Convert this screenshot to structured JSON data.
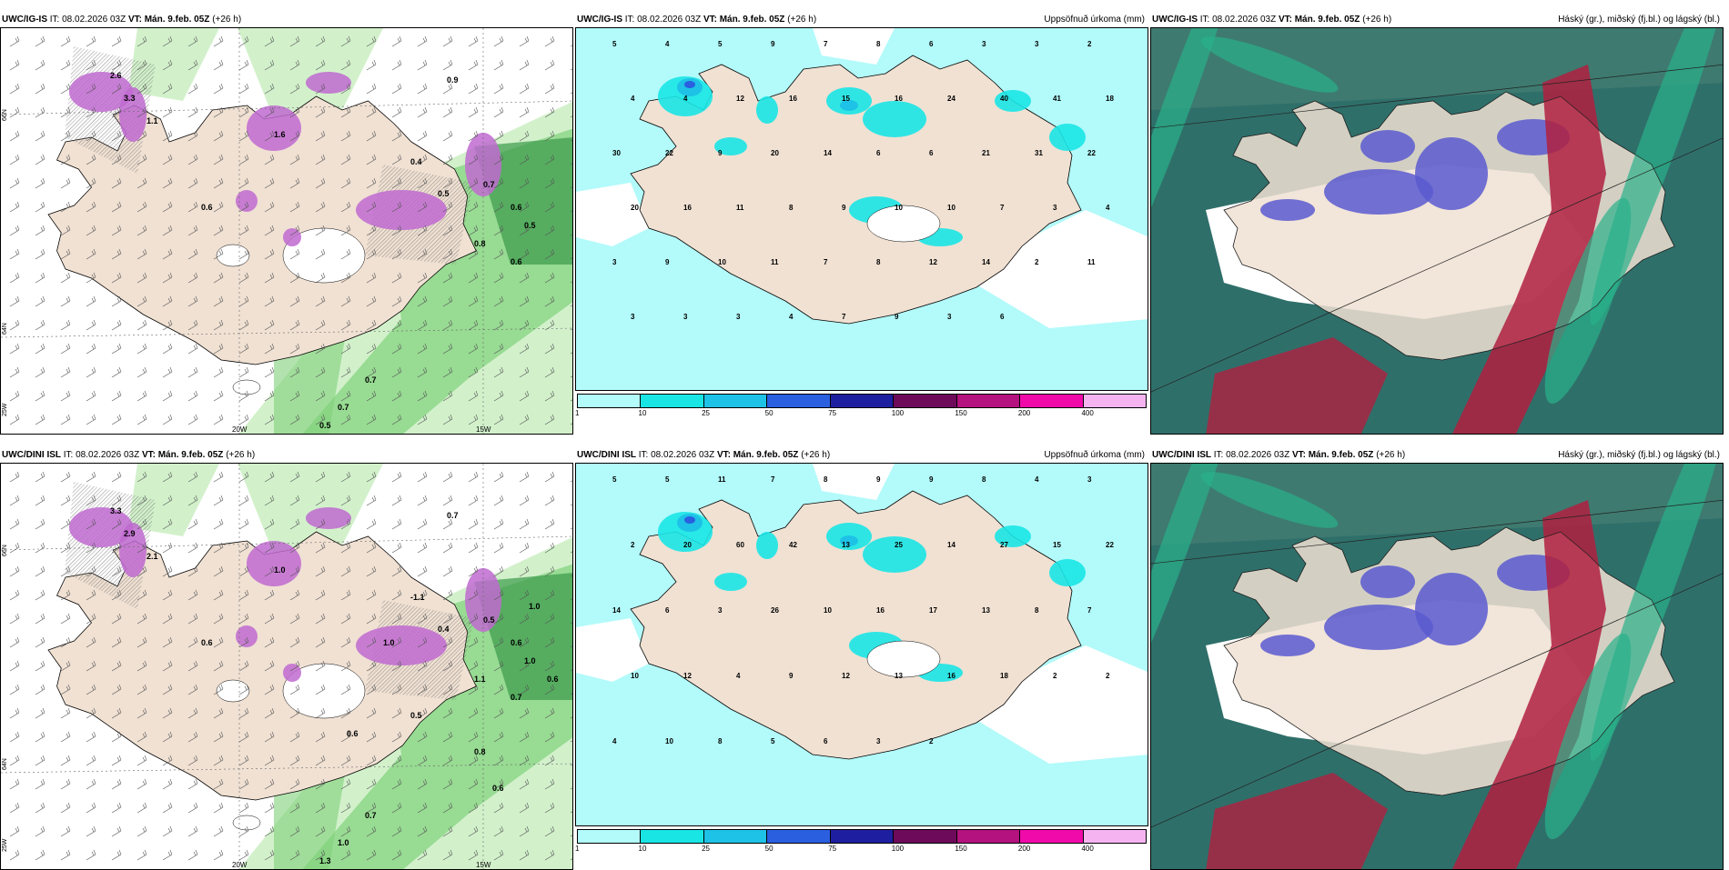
{
  "panels": [
    {
      "id": "r1c1",
      "title_model": "UWC/IG-IS",
      "title_it": " IT: 08.02.2026 03Z ",
      "title_vt": "VT: Mán. 9.feb. 05Z",
      "title_lead": " (+26 h)",
      "title_right": "",
      "type": "wind",
      "lon_labels": [
        "20W",
        "15W"
      ],
      "lat_labels": [
        "66N",
        "64N",
        "25W"
      ],
      "values": [
        "2.6",
        "3.3",
        "1.1",
        "0.6",
        "1.6",
        "0.9",
        "0.4",
        "0.5",
        "0.7",
        "0.6",
        "0.8",
        "0.5",
        "0.6",
        "0.7",
        "0.7",
        "0.5"
      ]
    },
    {
      "id": "r1c2",
      "title_model": "UWC/IG-IS",
      "title_it": " IT: 08.02.2026 03Z ",
      "title_vt": "VT: Mán. 9.feb. 05Z",
      "title_lead": " (+26 h)",
      "title_right": "Uppsöfnuð úrkoma (mm)",
      "type": "precip",
      "values": [
        "5",
        "4",
        "5",
        "9",
        "7",
        "8",
        "6",
        "3",
        "3",
        "2",
        "4",
        "4",
        "12",
        "16",
        "15",
        "16",
        "24",
        "40",
        "41",
        "18",
        "30",
        "22",
        "9",
        "20",
        "14",
        "6",
        "6",
        "21",
        "31",
        "22",
        "20",
        "16",
        "11",
        "8",
        "9",
        "10",
        "10",
        "7",
        "3",
        "4",
        "3",
        "9",
        "10",
        "11",
        "7",
        "8",
        "12",
        "14",
        "2",
        "11",
        "3",
        "3",
        "3",
        "4",
        "7",
        "9",
        "3",
        "6"
      ],
      "colorbar_labels": [
        "1",
        "10",
        "25",
        "50",
        "75",
        "100",
        "150",
        "200",
        "400"
      ]
    },
    {
      "id": "r1c3",
      "title_model": "UWC/IG-IS",
      "title_it": " IT: 08.02.2026 03Z ",
      "title_vt": "VT: Mán. 9.feb. 05Z",
      "title_lead": " (+26 h)",
      "title_right": "Háský (gr.), miðský (fj.bl.) og lágský (bl.)",
      "type": "cloud"
    },
    {
      "id": "r2c1",
      "title_model": "UWC/DINI ISL",
      "title_it": " IT: 08.02.2026 03Z ",
      "title_vt": "VT: Mán. 9.feb. 05Z",
      "title_lead": " (+26 h)",
      "title_right": "",
      "type": "wind",
      "lon_labels": [
        "20W",
        "15W"
      ],
      "lat_labels": [
        "66N",
        "64N",
        "25W"
      ],
      "values": [
        "3.3",
        "2.9",
        "2.1",
        "0.6",
        "1.0",
        "0.7",
        "-1.1",
        "0.4",
        "0.5",
        "0.6",
        "1.1",
        "1.0",
        "0.7",
        "0.7",
        "1.0",
        "1.3",
        "0.6",
        "0.5",
        "0.8",
        "0.6",
        "1.0",
        "1.0",
        "0.6"
      ]
    },
    {
      "id": "r2c2",
      "title_model": "UWC/DINI ISL",
      "title_it": " IT: 08.02.2026 03Z ",
      "title_vt": "VT: Mán. 9.feb. 05Z",
      "title_lead": " (+26 h)",
      "title_right": "Uppsöfnuð úrkoma (mm)",
      "type": "precip",
      "values": [
        "5",
        "5",
        "11",
        "7",
        "8",
        "9",
        "9",
        "8",
        "4",
        "3",
        "2",
        "20",
        "60",
        "42",
        "13",
        "25",
        "14",
        "27",
        "15",
        "22",
        "14",
        "6",
        "3",
        "26",
        "10",
        "16",
        "17",
        "13",
        "8",
        "7",
        "10",
        "12",
        "4",
        "9",
        "12",
        "13",
        "16",
        "18",
        "2",
        "2",
        "4",
        "10",
        "8",
        "5",
        "6",
        "3",
        "2"
      ],
      "colorbar_labels": [
        "1",
        "10",
        "25",
        "50",
        "75",
        "100",
        "150",
        "200",
        "400"
      ]
    },
    {
      "id": "r2c3",
      "title_model": "UWC/DINI ISL",
      "title_it": " IT: 08.02.2026 03Z ",
      "title_vt": "VT: Mán. 9.feb. 05Z",
      "title_lead": " (+26 h)",
      "title_right": "Háský (gr.), miðský (fj.bl.) og lágský (bl.)",
      "type": "cloud"
    }
  ],
  "colors": {
    "land": "#f0e1d3",
    "snow_white": "#ffffff",
    "precip_low": "#b3fafa",
    "precip_mid": "#19e5e5",
    "precip_high": "#1ec2e6",
    "precip_75": "#2a5fe0",
    "wind_green_light": "#cdefc5",
    "wind_green_mid": "#7fd17a",
    "wind_green_dark": "#3a9a4a",
    "magenta": "#c06ad0",
    "cloud_high": "#2ab08a",
    "cloud_mid": "#5a5ad0",
    "cloud_low": "#b02040",
    "colorbar": [
      "#b3fafa",
      "#19e5e5",
      "#1ec2e6",
      "#2a5fe0",
      "#1e1ea0",
      "#6e0a5a",
      "#b4127f",
      "#f00aaa",
      "#f5b4f0"
    ]
  }
}
